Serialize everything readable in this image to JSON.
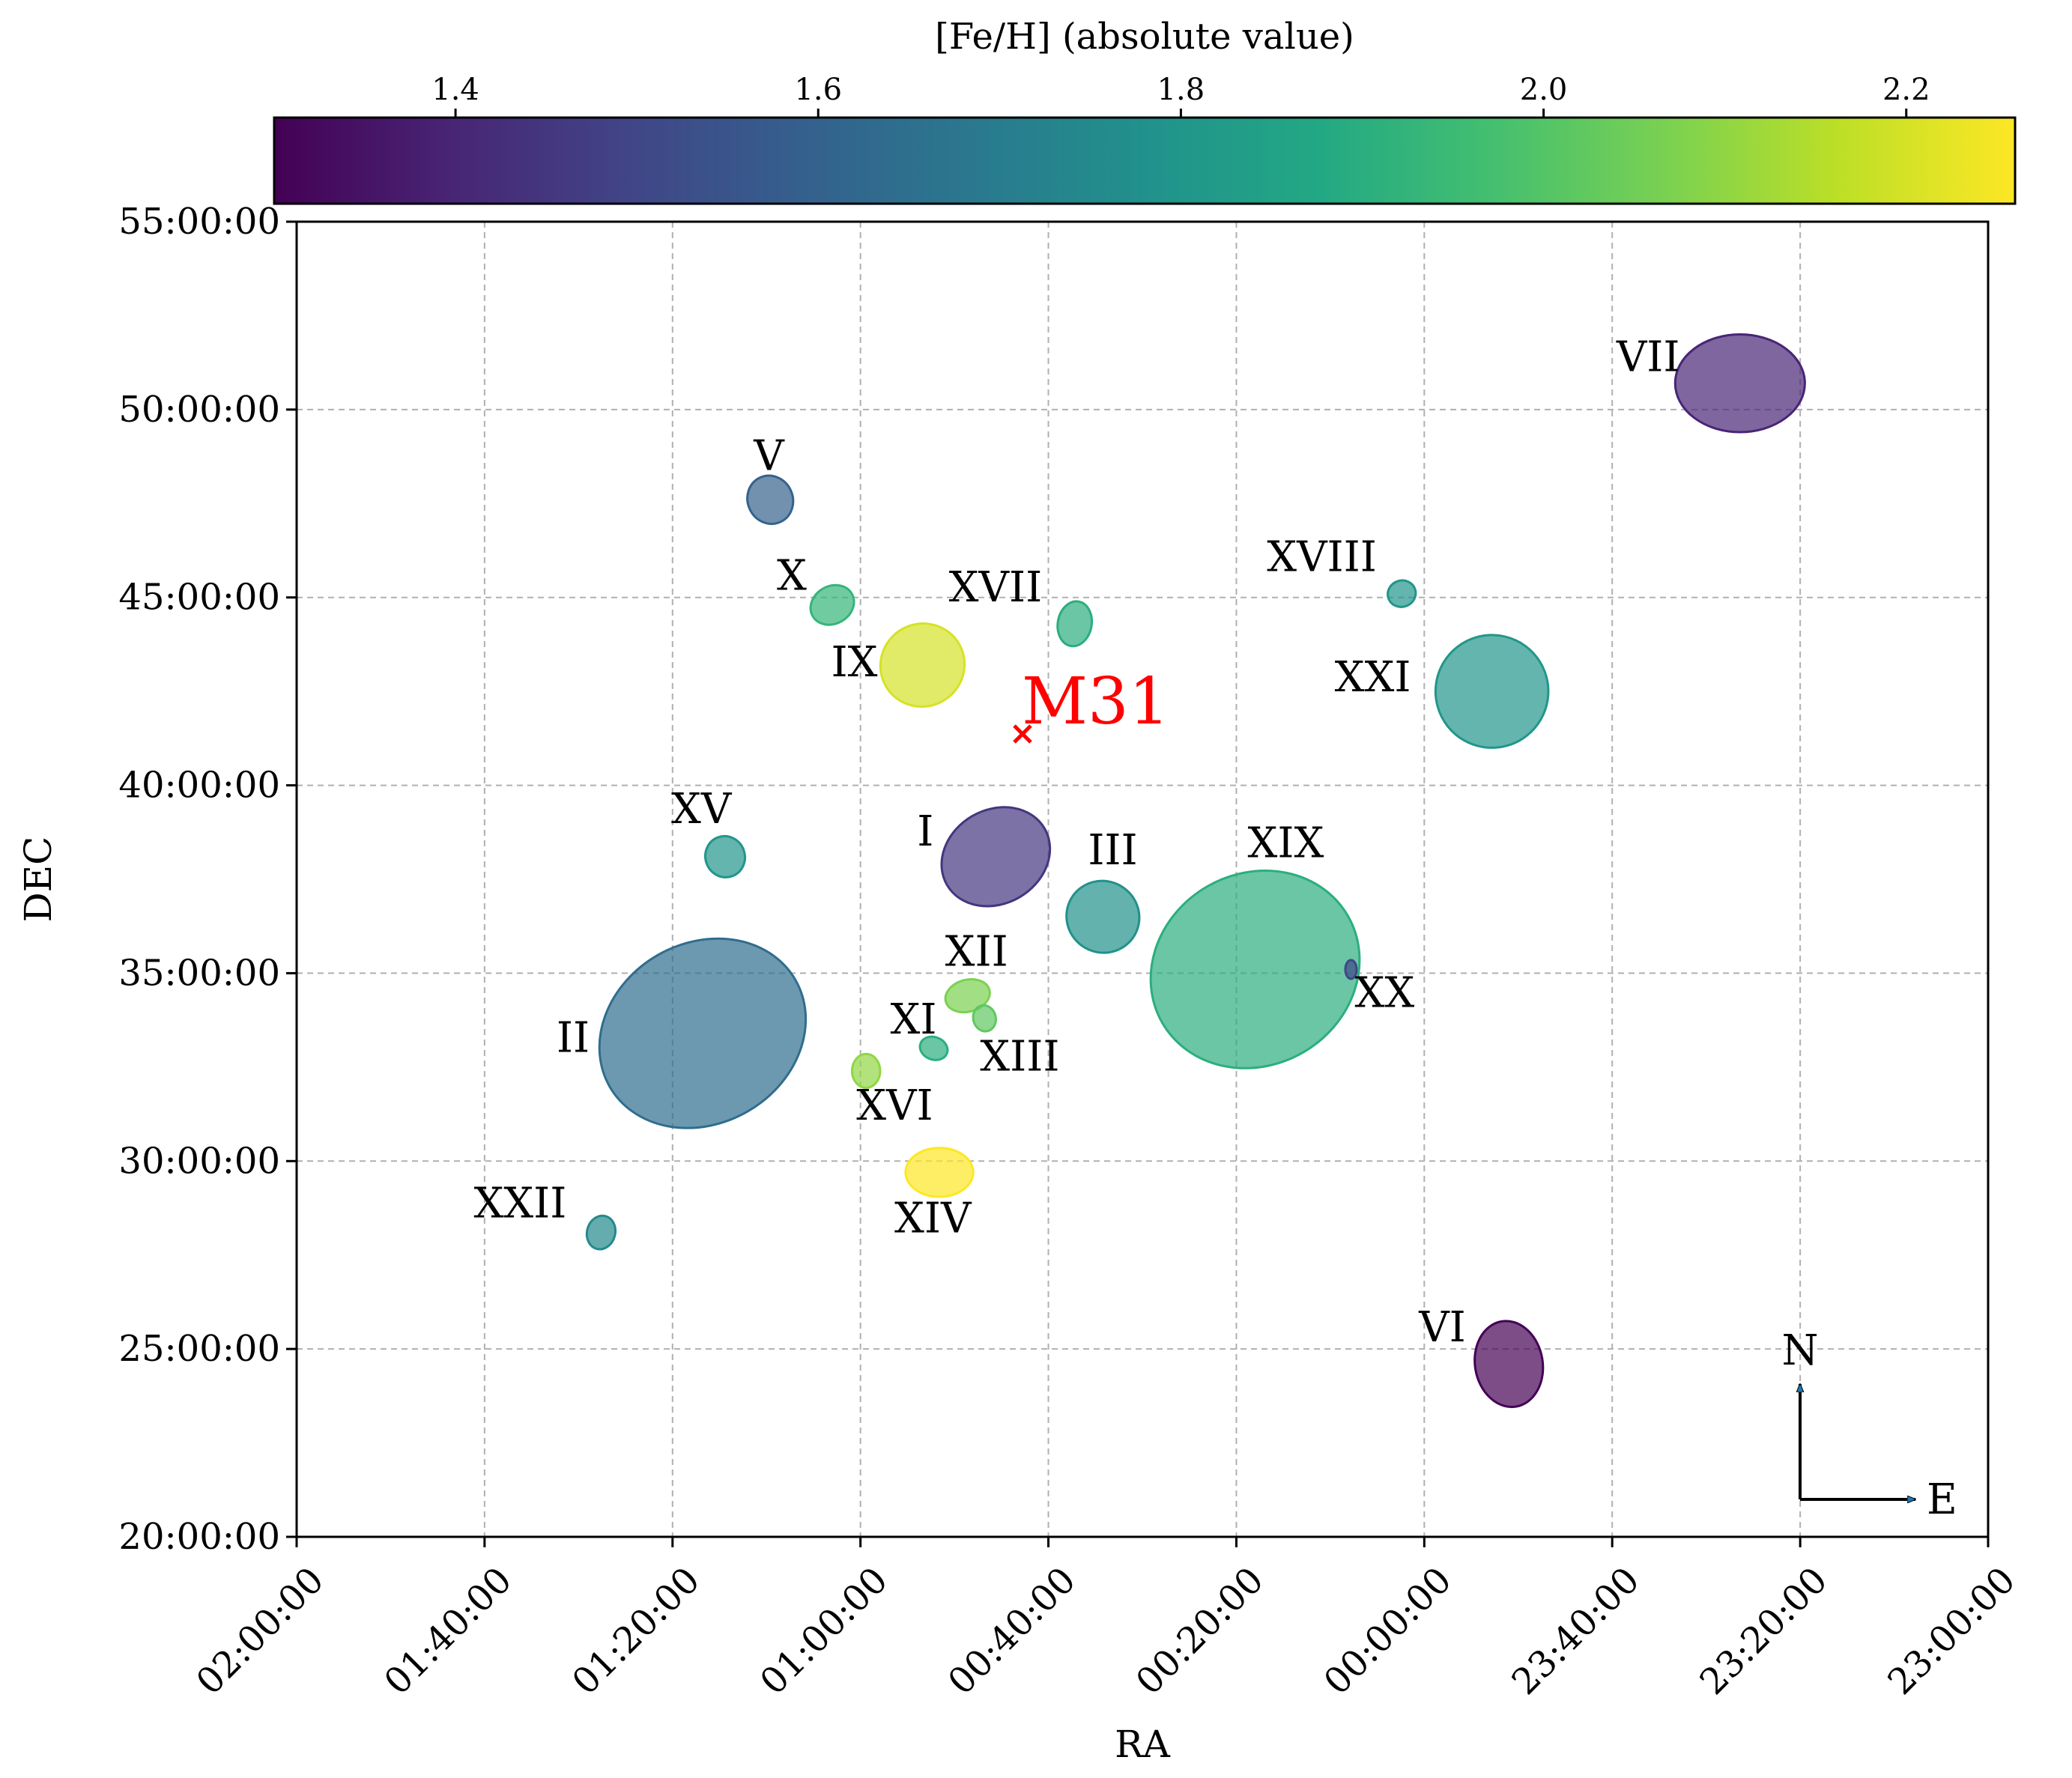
{
  "chart_data": {
    "type": "scatter",
    "marker": "ellipse",
    "xlabel": "RA",
    "ylabel": "DEC",
    "x_unit": "hours",
    "x_inverted": true,
    "xlim": [
      24.0,
      23.0
    ],
    "ylim": [
      20,
      55
    ],
    "xticks": [
      {
        "value": 26.0,
        "label": "02:00:00"
      },
      {
        "value": 25.6667,
        "label": "01:40:00"
      },
      {
        "value": 25.3333,
        "label": "01:20:00"
      },
      {
        "value": 25.0,
        "label": "01:00:00"
      },
      {
        "value": 24.6667,
        "label": "00:40:00"
      },
      {
        "value": 24.3333,
        "label": "00:20:00"
      },
      {
        "value": 24.0,
        "label": "00:00:00"
      },
      {
        "value": 23.6667,
        "label": "23:40:00"
      },
      {
        "value": 23.3333,
        "label": "23:20:00"
      },
      {
        "value": 23.0,
        "label": "23:00:00"
      }
    ],
    "yticks": [
      {
        "value": 20,
        "label": "20:00:00"
      },
      {
        "value": 25,
        "label": "25:00:00"
      },
      {
        "value": 30,
        "label": "30:00:00"
      },
      {
        "value": 35,
        "label": "35:00:00"
      },
      {
        "value": 40,
        "label": "40:00:00"
      },
      {
        "value": 45,
        "label": "45:00:00"
      },
      {
        "value": 50,
        "label": "50:00:00"
      },
      {
        "value": 55,
        "label": "55:00:00"
      }
    ],
    "grid": true,
    "colorbar": {
      "label": "[Fe/H] (absolute value)",
      "colormap": "viridis",
      "range": [
        1.3,
        2.26
      ],
      "ticks": [
        {
          "value": 1.4,
          "label": "1.4"
        },
        {
          "value": 1.6,
          "label": "1.6"
        },
        {
          "value": 1.8,
          "label": "1.8"
        },
        {
          "value": 2.0,
          "label": "2.0"
        },
        {
          "value": 2.2,
          "label": "2.2"
        }
      ],
      "placement": "top"
    },
    "center": {
      "name": "M31",
      "ra": 24.712,
      "dec": 41.27,
      "color": "#ff0000"
    },
    "points": [
      {
        "name": "I",
        "ra": 24.76,
        "dec": 38.1,
        "width_ra": 0.2,
        "height_dec": 2.5,
        "angle": 30,
        "feh": 1.45
      },
      {
        "name": "II",
        "ra": 25.28,
        "dec": 33.4,
        "width_ra": 0.38,
        "height_dec": 4.8,
        "angle": 30,
        "feh": 1.64
      },
      {
        "name": "III",
        "ra": 24.57,
        "dec": 36.5,
        "width_ra": 0.13,
        "height_dec": 1.9,
        "angle": -30,
        "feh": 1.78
      },
      {
        "name": "V",
        "ra": 25.16,
        "dec": 47.6,
        "width_ra": 0.08,
        "height_dec": 1.3,
        "angle": 25,
        "feh": 1.6
      },
      {
        "name": "VI",
        "ra": 23.85,
        "dec": 24.6,
        "width_ra": 0.12,
        "height_dec": 2.3,
        "angle": 10,
        "feh": 1.3
      },
      {
        "name": "VII",
        "ra": 23.44,
        "dec": 50.7,
        "width_ra": 0.23,
        "height_dec": 2.6,
        "angle": 0,
        "feh": 1.4
      },
      {
        "name": "IX",
        "ra": 24.89,
        "dec": 43.2,
        "width_ra": 0.15,
        "height_dec": 2.2,
        "angle": 30,
        "feh": 2.2
      },
      {
        "name": "X",
        "ra": 25.05,
        "dec": 44.8,
        "width_ra": 0.08,
        "height_dec": 1.0,
        "angle": 30,
        "feh": 1.93
      },
      {
        "name": "XI",
        "ra": 24.87,
        "dec": 33.0,
        "width_ra": 0.05,
        "height_dec": 0.6,
        "angle": -20,
        "feh": 1.9
      },
      {
        "name": "XII",
        "ra": 24.81,
        "dec": 34.4,
        "width_ra": 0.08,
        "height_dec": 0.85,
        "angle": 15,
        "feh": 2.07
      },
      {
        "name": "XIII",
        "ra": 24.78,
        "dec": 33.8,
        "width_ra": 0.04,
        "height_dec": 0.7,
        "angle": 15,
        "feh": 2.02
      },
      {
        "name": "XIV",
        "ra": 24.86,
        "dec": 29.7,
        "width_ra": 0.12,
        "height_dec": 1.3,
        "angle": 0,
        "feh": 2.26
      },
      {
        "name": "XV",
        "ra": 25.24,
        "dec": 38.1,
        "width_ra": 0.07,
        "height_dec": 1.1,
        "angle": 20,
        "feh": 1.8
      },
      {
        "name": "XVI",
        "ra": 24.99,
        "dec": 32.4,
        "width_ra": 0.05,
        "height_dec": 0.9,
        "angle": 0,
        "feh": 2.1
      },
      {
        "name": "XVII",
        "ra": 24.62,
        "dec": 44.3,
        "width_ra": 0.06,
        "height_dec": 1.2,
        "angle": -10,
        "feh": 1.9
      },
      {
        "name": "XVIII",
        "ra": 24.04,
        "dec": 45.1,
        "width_ra": 0.05,
        "height_dec": 0.7,
        "angle": 20,
        "feh": 1.8
      },
      {
        "name": "XIX",
        "ra": 24.3,
        "dec": 35.1,
        "width_ra": 0.38,
        "height_dec": 5.1,
        "angle": 30,
        "feh": 1.9
      },
      {
        "name": "XX",
        "ra": 24.13,
        "dec": 35.1,
        "width_ra": 0.02,
        "height_dec": 0.5,
        "angle": 0,
        "feh": 1.5
      },
      {
        "name": "XXI",
        "ra": 23.88,
        "dec": 42.5,
        "width_ra": 0.2,
        "height_dec": 3.0,
        "angle": -30,
        "feh": 1.8
      },
      {
        "name": "XXII",
        "ra": 25.46,
        "dec": 28.1,
        "width_ra": 0.05,
        "height_dec": 0.9,
        "angle": -15,
        "feh": 1.75
      }
    ],
    "compass": {
      "north": "N",
      "east": "E"
    }
  }
}
